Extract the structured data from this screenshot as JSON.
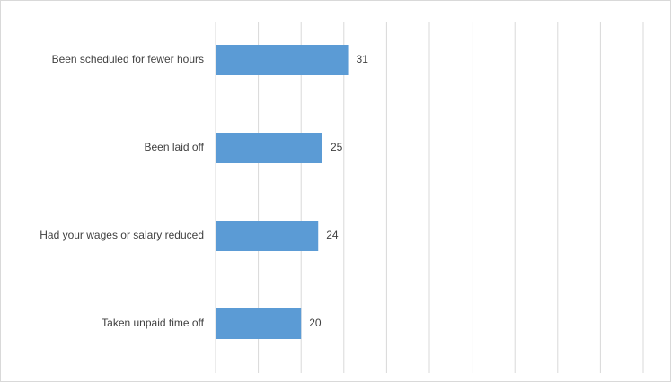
{
  "chart_data": {
    "type": "bar",
    "orientation": "horizontal",
    "categories": [
      "Been scheduled for fewer hours",
      "Been laid off",
      "Had your wages or salary reduced",
      "Taken unpaid time off"
    ],
    "values": [
      31,
      25,
      24,
      20
    ],
    "color": "#5b9bd5",
    "xlim": [
      0,
      100
    ],
    "xticks": [
      0,
      10,
      20,
      30,
      40,
      50,
      60,
      70,
      80,
      90,
      100
    ],
    "grid": true
  }
}
